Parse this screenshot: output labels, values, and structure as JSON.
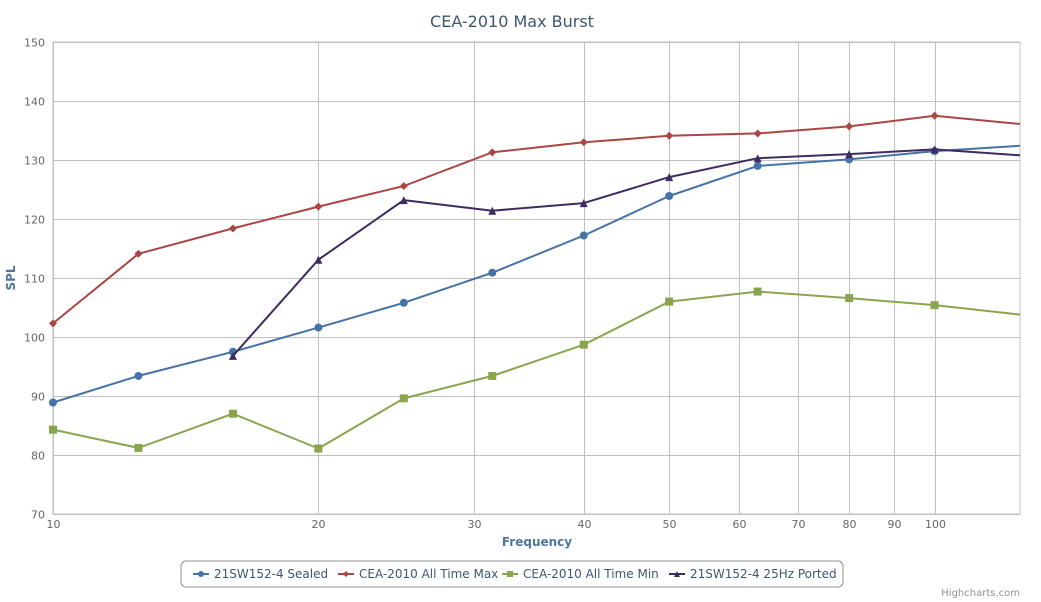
{
  "chart_data": {
    "type": "line",
    "title": "CEA-2010 Max Burst",
    "xlabel": "Frequency",
    "ylabel": "SPL",
    "x_scale": "log",
    "xlim": [
      10,
      125
    ],
    "ylim": [
      70,
      150
    ],
    "x_ticks": [
      "10",
      "20",
      "30",
      "40",
      "50",
      "60",
      "70",
      "80",
      "90",
      "100"
    ],
    "x_tick_values": [
      10,
      20,
      30,
      40,
      50,
      60,
      70,
      80,
      90,
      100
    ],
    "y_ticks": [
      "70",
      "80",
      "90",
      "100",
      "110",
      "120",
      "130",
      "140",
      "150"
    ],
    "y_tick_values": [
      70,
      80,
      90,
      100,
      110,
      120,
      130,
      140,
      150
    ],
    "grid": true,
    "legend_position": "bottom-center",
    "series": [
      {
        "name": "21SW152-4 Sealed",
        "color": "#4572A7",
        "marker": "circle",
        "points": [
          [
            10,
            88.9
          ],
          [
            12.5,
            93.4
          ],
          [
            16,
            97.5
          ],
          [
            20,
            101.6
          ],
          [
            25,
            105.8
          ],
          [
            31.5,
            110.9
          ],
          [
            40,
            117.2
          ],
          [
            50,
            123.9
          ],
          [
            63,
            129
          ],
          [
            80,
            130.1
          ],
          [
            100,
            131.5
          ],
          [
            125,
            132.4
          ]
        ]
      },
      {
        "name": "CEA-2010 All Time Max",
        "color": "#AA4643",
        "marker": "diamond",
        "points": [
          [
            10,
            102.3
          ],
          [
            12.5,
            114.1
          ],
          [
            16,
            118.4
          ],
          [
            20,
            122.1
          ],
          [
            25,
            125.6
          ],
          [
            31.5,
            131.3
          ],
          [
            40,
            133
          ],
          [
            50,
            134.1
          ],
          [
            63,
            134.5
          ],
          [
            80,
            135.7
          ],
          [
            100,
            137.5
          ],
          [
            125,
            136.1
          ]
        ]
      },
      {
        "name": "CEA-2010 All Time Min",
        "color": "#89A54E",
        "marker": "square",
        "points": [
          [
            10,
            84.3
          ],
          [
            12.5,
            81.2
          ],
          [
            16,
            87
          ],
          [
            20,
            81.1
          ],
          [
            25,
            89.6
          ],
          [
            31.5,
            93.4
          ],
          [
            40,
            98.7
          ],
          [
            50,
            106
          ],
          [
            63,
            107.7
          ],
          [
            80,
            106.6
          ],
          [
            100,
            105.4
          ],
          [
            125,
            103.8
          ]
        ]
      },
      {
        "name": "21SW152-4 25Hz Ported",
        "color": "#3D2B61",
        "marker": "triangle",
        "points": [
          [
            16,
            96.8
          ],
          [
            20,
            113.1
          ],
          [
            25,
            123.2
          ],
          [
            31.5,
            121.4
          ],
          [
            40,
            122.7
          ],
          [
            50,
            127.1
          ],
          [
            63,
            130.3
          ],
          [
            80,
            131
          ],
          [
            100,
            131.8
          ],
          [
            125,
            130.8
          ]
        ]
      }
    ],
    "credits": "Highcharts.com"
  }
}
